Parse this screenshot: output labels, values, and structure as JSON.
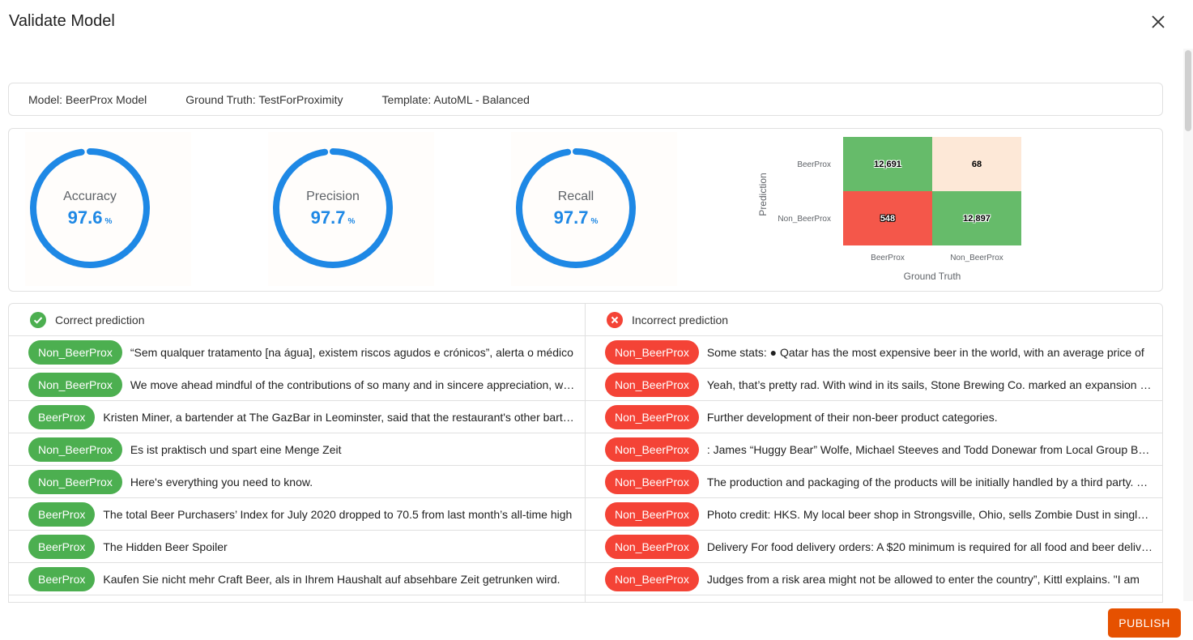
{
  "dialog": {
    "title": "Validate Model"
  },
  "info": {
    "model": "Model: BeerProx Model",
    "ground_truth": "Ground Truth: TestForProximity",
    "template": "Template: AutoML - Balanced"
  },
  "metrics": [
    {
      "label": "Accuracy",
      "value": "97.6",
      "unit": "%",
      "fraction": 0.976
    },
    {
      "label": "Precision",
      "value": "97.7",
      "unit": "%",
      "fraction": 0.977
    },
    {
      "label": "Recall",
      "value": "97.7",
      "unit": "%",
      "fraction": 0.977
    }
  ],
  "confusion_matrix": {
    "y_title": "Prediction",
    "x_title": "Ground Truth",
    "rows": [
      "BeerProx",
      "Non_BeerProx"
    ],
    "cols": [
      "BeerProx",
      "Non_BeerProx"
    ],
    "cells": [
      [
        "12,691",
        "68"
      ],
      [
        "548",
        "12,897"
      ]
    ],
    "colors": [
      [
        "#66bb6a",
        "#fde8d7"
      ],
      [
        "#f4574a",
        "#66bb6a"
      ]
    ]
  },
  "correct": {
    "header": "Correct prediction",
    "icon": "check-circle-icon",
    "color": "#4caf50",
    "rows": [
      {
        "label": "Non_BeerProx",
        "text": "“Sem qualquer tratamento [na água], existem riscos agudos e crónicos”, alerta o médico"
      },
      {
        "label": "Non_BeerProx",
        "text": "We move ahead mindful of the contributions of so many and in sincere appreciation, we remain"
      },
      {
        "label": "BeerProx",
        "text": "Kristen Miner, a bartender at The GazBar in Leominster, said that the restaurant's other bartenders"
      },
      {
        "label": "Non_BeerProx",
        "text": "Es ist praktisch und spart eine Menge Zeit"
      },
      {
        "label": "Non_BeerProx",
        "text": "Here's everything you need to know."
      },
      {
        "label": "BeerProx",
        "text": "The total Beer Purchasers’ Index for July 2020 dropped to 70.5 from last month’s all-time high"
      },
      {
        "label": "BeerProx",
        "text": "The Hidden Beer Spoiler"
      },
      {
        "label": "BeerProx",
        "text": "Kaufen Sie nicht mehr Craft Beer, als in Ihrem Haushalt auf absehbare Zeit getrunken wird."
      }
    ]
  },
  "incorrect": {
    "header": "Incorrect prediction",
    "icon": "x-circle-icon",
    "color": "#f44336",
    "rows": [
      {
        "label": "Non_BeerProx",
        "text": "Some stats: ● Qatar has the most expensive beer in the world, with an average price of"
      },
      {
        "label": "Non_BeerProx",
        "text": "Yeah, that’s pretty rad. With wind in its sails, Stone Brewing Co. marked an expansion into"
      },
      {
        "label": "Non_BeerProx",
        "text": "Further development of their non-beer product categories."
      },
      {
        "label": "Non_BeerProx",
        "text": ": James “Huggy Bear” Wolfe, Michael Steeves and Todd Donewar from Local Group Brewing"
      },
      {
        "label": "Non_BeerProx",
        "text": "The production and packaging of the products will be initially handled by a third party. The"
      },
      {
        "label": "Non_BeerProx",
        "text": "Photo credit: HKS. My local beer shop in Strongsville, Ohio, sells Zombie Dust in single cans"
      },
      {
        "label": "Non_BeerProx",
        "text": "Delivery For food delivery orders: A $20 minimum is required for all food and beer deliveries"
      },
      {
        "label": "Non_BeerProx",
        "text": "Judges from a risk area might not be allowed to enter the country”, Kittl explains. \"I am"
      }
    ]
  },
  "actions": {
    "publish_label": "PUBLISH"
  },
  "colors": {
    "accent": "#1e88e5",
    "publish": "#e65100",
    "correct": "#4caf50",
    "incorrect": "#f44336"
  }
}
